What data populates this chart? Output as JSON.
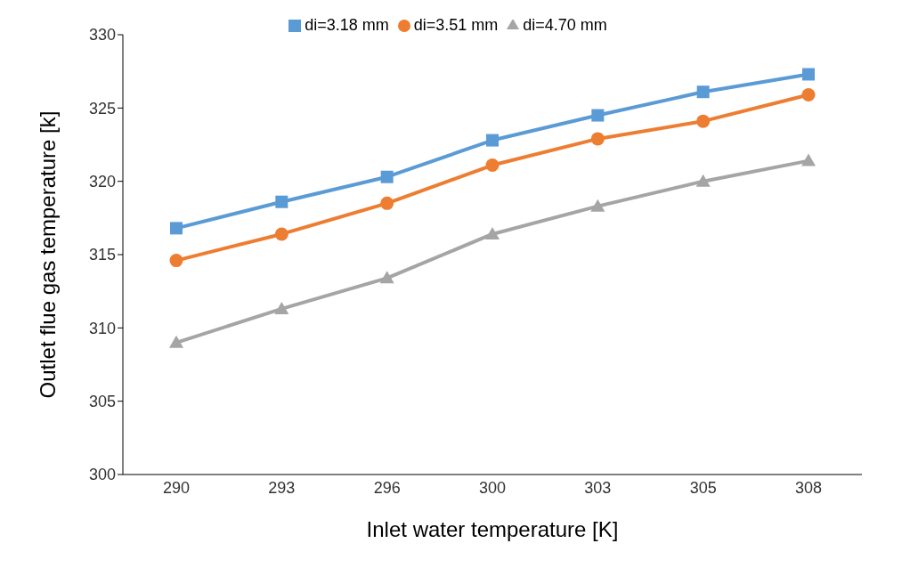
{
  "chart_data": {
    "type": "line",
    "xlabel": "Inlet water temperature [K]",
    "ylabel": "Outlet flue gas temperature [k]",
    "categories": [
      "290",
      "293",
      "296",
      "300",
      "303",
      "305",
      "308"
    ],
    "series": [
      {
        "name": "di=3.18 mm",
        "color": "#5b9bd5",
        "marker": "square",
        "values": [
          316.8,
          318.6,
          320.3,
          322.8,
          324.5,
          326.1,
          327.3
        ]
      },
      {
        "name": "di=3.51 mm",
        "color": "#ed7d31",
        "marker": "circle",
        "values": [
          314.6,
          316.4,
          318.5,
          321.1,
          322.9,
          324.1,
          325.9
        ]
      },
      {
        "name": "di=4.70 mm",
        "color": "#a5a5a5",
        "marker": "triangle",
        "values": [
          309.0,
          311.3,
          313.4,
          316.4,
          318.3,
          320.0,
          321.4
        ]
      }
    ],
    "ylim": [
      300,
      330
    ],
    "yticks": [
      300,
      305,
      310,
      315,
      320,
      325,
      330
    ],
    "grid": false,
    "legend": "top",
    "line_style": "solid"
  }
}
